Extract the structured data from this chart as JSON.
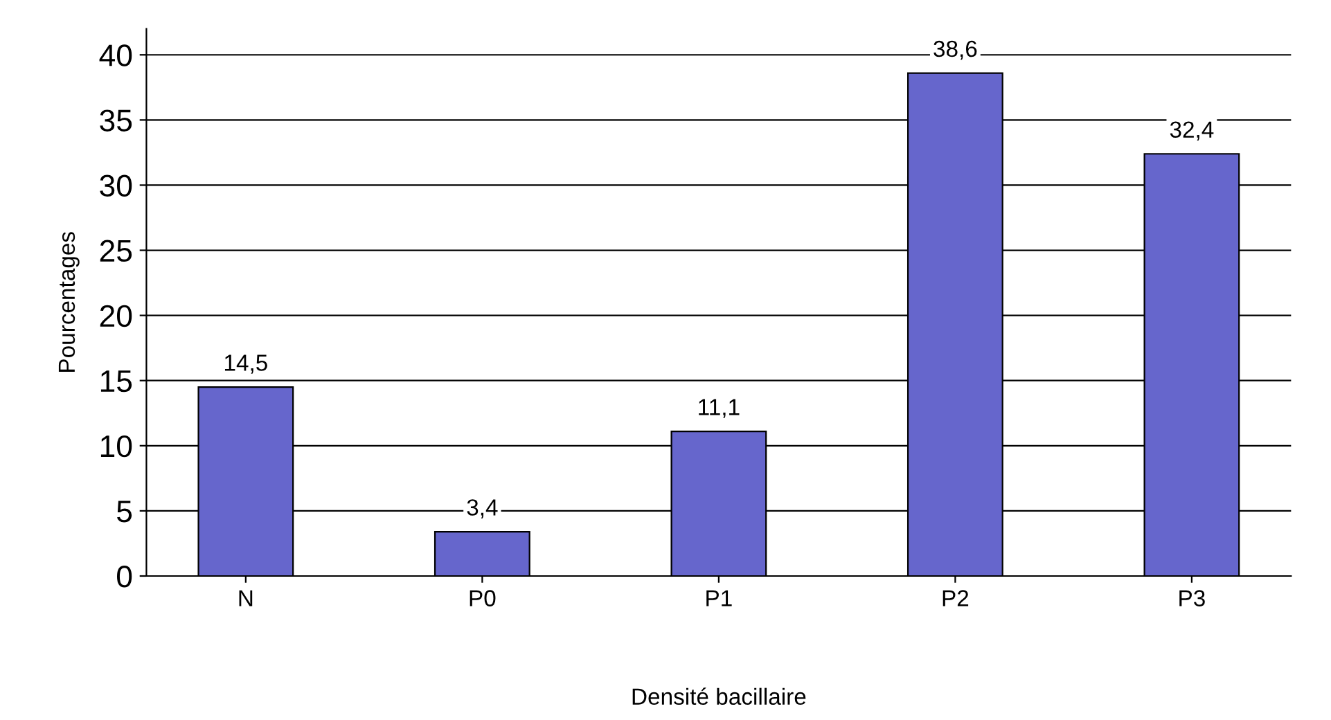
{
  "chart_data": {
    "type": "bar",
    "xlabel": "Densité bacillaire",
    "ylabel": "Pourcentages",
    "categories": [
      "N",
      "P0",
      "P1",
      "P2",
      "P3"
    ],
    "values": [
      14.5,
      3.4,
      11.1,
      38.6,
      32.4
    ],
    "value_labels": [
      "14,5",
      "3,4",
      "11,1",
      "38,6",
      "32,4"
    ],
    "color": "#6666cc",
    "ylim": [
      0,
      42
    ],
    "yticks": [
      0,
      5,
      10,
      15,
      20,
      25,
      30,
      35,
      40
    ],
    "grid": "y"
  }
}
